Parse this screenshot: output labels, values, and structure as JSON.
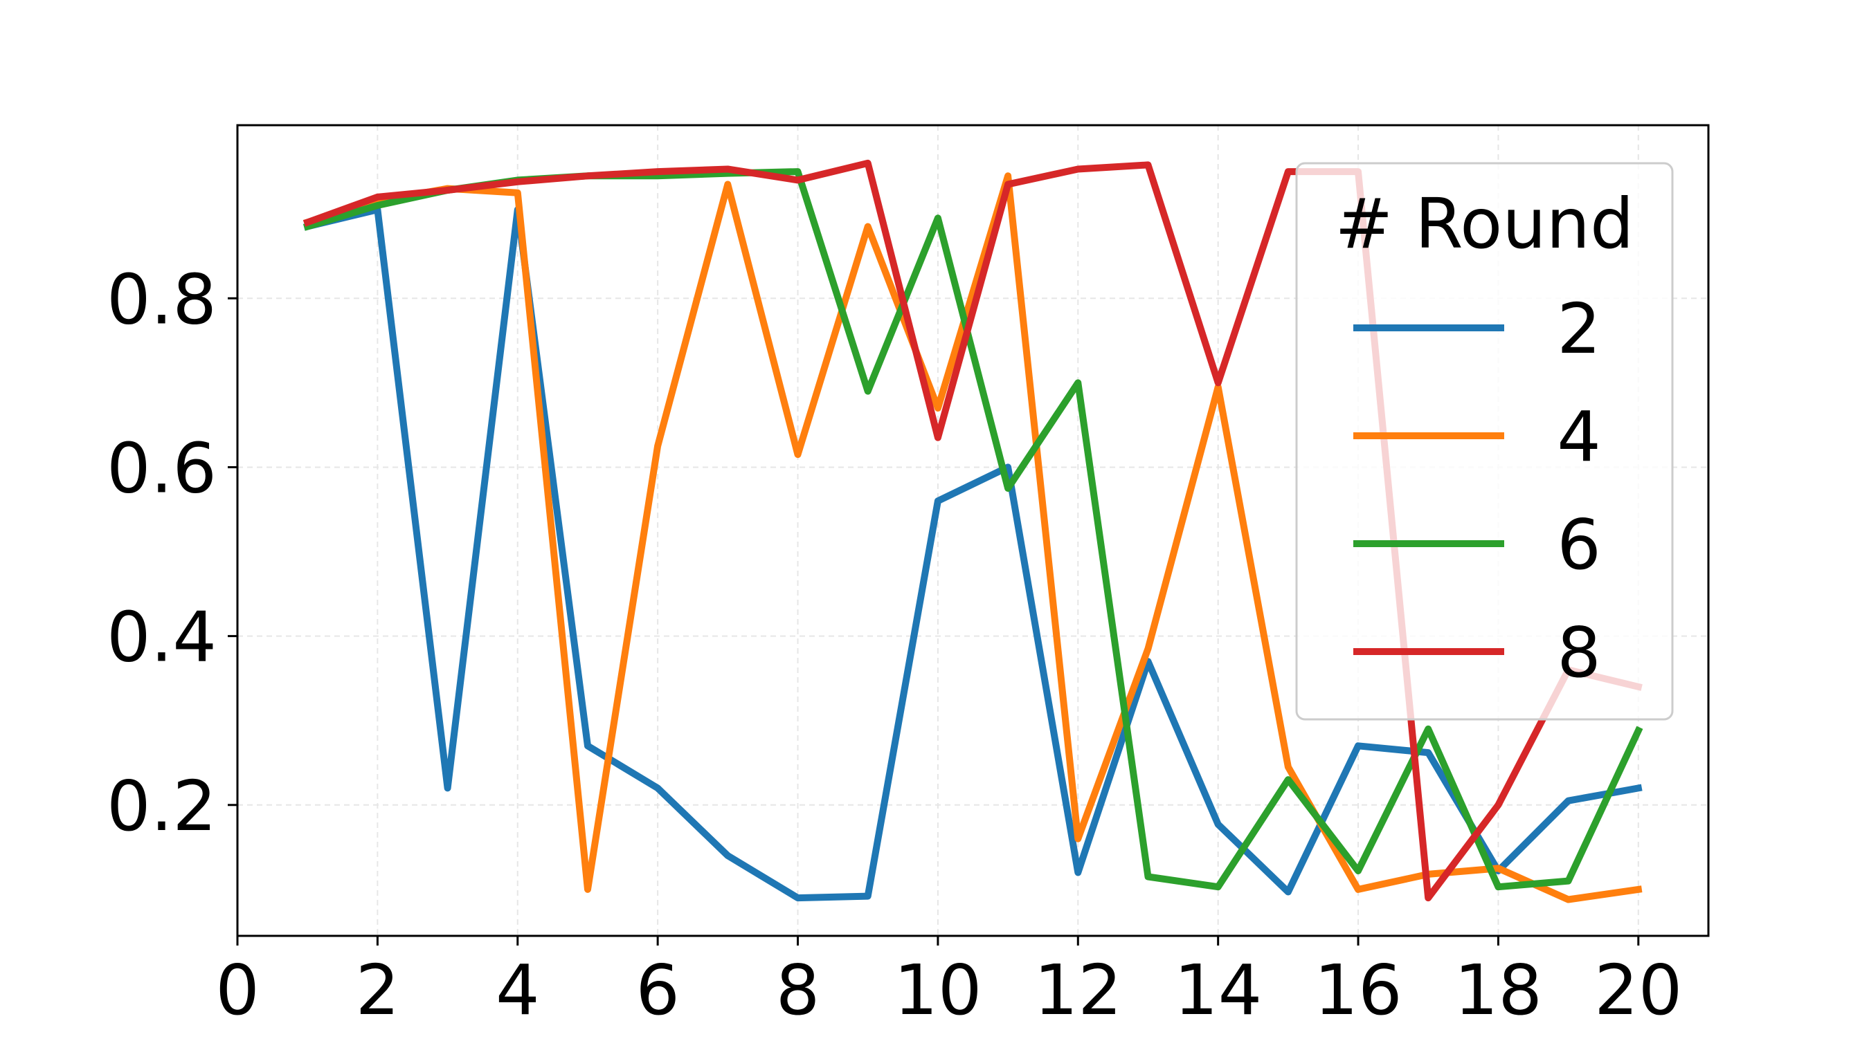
{
  "chart_data": {
    "type": "line",
    "title": "",
    "xlabel": "",
    "ylabel": "",
    "xlim": [
      0,
      21
    ],
    "ylim": [
      0.045,
      1.005
    ],
    "xticks": [
      0,
      2,
      4,
      6,
      8,
      10,
      12,
      14,
      16,
      18,
      20
    ],
    "xtick_labels": [
      "0",
      "2",
      "4",
      "6",
      "8",
      "10",
      "12",
      "14",
      "16",
      "18",
      "20"
    ],
    "yticks": [
      0.2,
      0.4,
      0.6,
      0.8
    ],
    "ytick_labels": [
      "0.2",
      "0.4",
      "0.6",
      "0.8"
    ],
    "grid": true,
    "legend": {
      "title": "# Round",
      "placement": "upper right"
    },
    "x": [
      1,
      2,
      3,
      4,
      5,
      6,
      7,
      8,
      9,
      10,
      11,
      12,
      13,
      14,
      15,
      16,
      17,
      18,
      19,
      20
    ],
    "series": [
      {
        "name": "2",
        "color": "#1f77b4",
        "values": [
          0.885,
          0.905,
          0.22,
          0.905,
          0.27,
          0.22,
          0.14,
          0.09,
          0.092,
          0.56,
          0.6,
          0.12,
          0.37,
          0.177,
          0.097,
          0.27,
          0.262,
          0.122,
          0.205,
          0.22
        ]
      },
      {
        "name": "4",
        "color": "#ff7f0e",
        "values": [
          0.89,
          0.915,
          0.93,
          0.925,
          0.1,
          0.625,
          0.935,
          0.615,
          0.885,
          0.67,
          0.945,
          0.16,
          0.385,
          0.695,
          0.245,
          0.1,
          0.118,
          0.125,
          0.088,
          0.1
        ]
      },
      {
        "name": "6",
        "color": "#2ca02c",
        "values": [
          0.885,
          0.91,
          0.928,
          0.94,
          0.945,
          0.945,
          0.948,
          0.95,
          0.69,
          0.895,
          0.575,
          0.7,
          0.115,
          0.103,
          0.23,
          0.122,
          0.29,
          0.103,
          0.11,
          0.288
        ]
      },
      {
        "name": "8",
        "color": "#d62728",
        "values": [
          0.89,
          0.92,
          0.928,
          0.938,
          0.945,
          0.95,
          0.953,
          0.94,
          0.96,
          0.635,
          0.935,
          0.953,
          0.958,
          0.7,
          0.95,
          0.95,
          0.09,
          0.2,
          0.36,
          0.34
        ]
      }
    ]
  }
}
